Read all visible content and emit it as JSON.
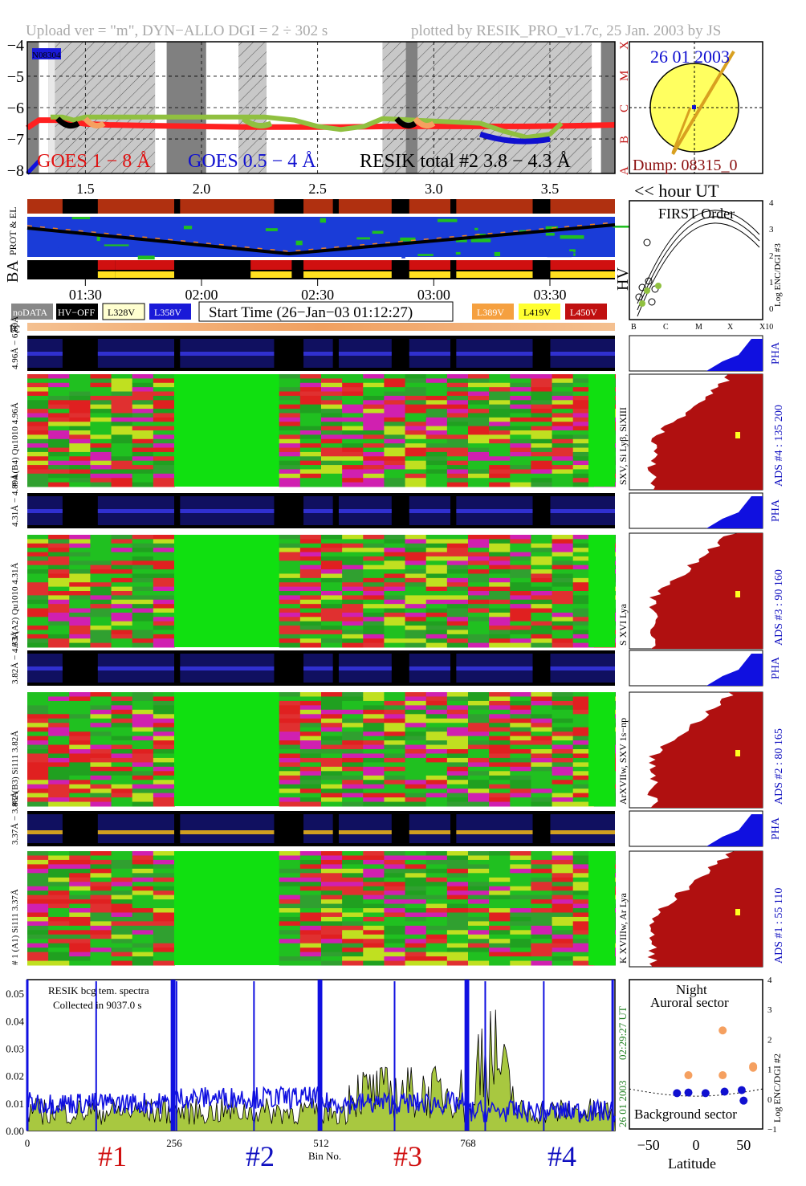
{
  "header": {
    "left": "Upload ver = \"m\", DYN−ALLO DGI =   2 ÷ 302 s",
    "right": "plotted by RESIK_PRO_v1.7c, 25 Jan. 2003 by JS"
  },
  "goes_panel": {
    "id_tag": "N08304",
    "y_ticks": [
      "−4",
      "−5",
      "−6",
      "−7",
      "−8"
    ],
    "class_labels": [
      "X",
      "M",
      "C",
      "B",
      "A"
    ],
    "x_ticks": [
      "1.5",
      "2.0",
      "2.5",
      "3.0",
      "3.5"
    ],
    "legend_goes_long": "GOES 1 − 8 Å",
    "legend_goes_short": "GOES 0.5 − 4 Å",
    "legend_resik": "RESIK total #2  3.8 − 4.3 Å",
    "colors": {
      "goes_long": "#ff2020",
      "goes_short": "#1010e0",
      "resik_total": "#90c040",
      "resik_orange": "#f5a060"
    }
  },
  "sun_panel": {
    "date": "26 01 2003",
    "dump": "Dump: 08315_0",
    "disk_color": "#ffff60"
  },
  "hour_axis_label": "<< hour UT",
  "status": {
    "prot_label": "PROT & EL",
    "ba_label": "BA",
    "hv_label": "HV",
    "time_ticks": [
      "01:30",
      "02:00",
      "02:30",
      "03:00",
      "03:30"
    ]
  },
  "legend_boxes": {
    "nodata": "noDATA",
    "hvoff": "HV−OFF",
    "l328": "L328V",
    "l358": "L358V",
    "start_time": "Start Time (26−Jan−03 01:12:27)",
    "l389": "L389V",
    "l419": "L419V",
    "l450": "L450V"
  },
  "first_order": {
    "title": "FIRST Order",
    "ylabel": "Log ENC/DGI #3",
    "y_ticks": [
      "4",
      "3",
      "2",
      "1",
      "0"
    ],
    "x_ticks": [
      "B",
      "C",
      "M",
      "X",
      "X10"
    ]
  },
  "tc_label": "tc",
  "channels": [
    {
      "pha_label": "4.96Å − 6.09Å",
      "spec_label": "# 4 (B4) Qu1010 4.96Å",
      "side_label": "SXV, Si Lyβ, SiXIII",
      "ads_label": "ADS #4 :   135 200",
      "pha": "PHA"
    },
    {
      "pha_label": "4.31Å − 4.89Å",
      "spec_label": "# 3 (A2) Qu1010 4.31Å",
      "side_label": "S XVI Lya",
      "ads_label": "ADS #3 :    90 160",
      "pha": "PHA"
    },
    {
      "pha_label": "3.82Å − 4.33Å",
      "spec_label": "# 2 (B3) Si111 3.82Å",
      "side_label": "ArXVIIw, SXV 1s−np",
      "ads_label": "ADS #2 :    80 165",
      "pha": "PHA"
    },
    {
      "pha_label": "3.37Å − 3.88Å",
      "spec_label": "# 1 (A1) Si111 3.37Å",
      "side_label": "K XVIIIw, Ar Lya",
      "ads_label": "ADS #1 :    55 110",
      "pha": "PHA"
    }
  ],
  "bottom_spectrum": {
    "note1": "RESIK bcg tem. spectra",
    "note2": "Collected in  9037.0 s",
    "y_ticks": [
      "0.05",
      "0.04",
      "0.03",
      "0.02",
      "0.01",
      "0.00"
    ],
    "x_ticks": [
      "0",
      "256",
      "512",
      "768"
    ],
    "xlabel": "Bin No.",
    "section_labels": [
      "#1",
      "#2",
      "#3",
      "#4"
    ],
    "side_date": "26 01 2003",
    "side_time": "02:29:27 UT"
  },
  "latitude_panel": {
    "title1": "Night",
    "title2": "Auroral sector",
    "bottom_label": "Background sector",
    "ylabel": "Log ENC/DGI #2",
    "y_ticks": [
      "4",
      "3",
      "2",
      "1",
      "0",
      "−1"
    ],
    "x_ticks": [
      "−50",
      "0",
      "50"
    ],
    "xlabel": "Latitude"
  },
  "chart_data": [
    {
      "type": "line",
      "title": "",
      "xlabel": "hour UT",
      "ylabel": "",
      "xlim": [
        1.25,
        3.78
      ],
      "ylim": [
        -8.1,
        -3.9
      ],
      "series": [
        {
          "name": "GOES 1 − 8 Å",
          "x": [
            1.25,
            1.3,
            1.4,
            1.5,
            1.6,
            1.8,
            2.0,
            2.2,
            2.4,
            2.6,
            2.8,
            3.0,
            3.2,
            3.4,
            3.6,
            3.78
          ],
          "values": [
            -6.65,
            -6.4,
            -6.4,
            -6.52,
            -6.55,
            -6.58,
            -6.6,
            -6.62,
            -6.62,
            -6.62,
            -6.6,
            -6.6,
            -6.6,
            -6.6,
            -6.58,
            -6.55
          ]
        },
        {
          "name": "GOES 0.5 − 4 Å",
          "x": [
            1.25,
            1.3
          ],
          "values": [
            -8.1,
            -7.7
          ]
        },
        {
          "name": "RESIK total #2  3.8 − 4.3 Å",
          "x": [
            1.35,
            1.4,
            1.45,
            1.5,
            2.17,
            2.27,
            2.4,
            2.5,
            2.6,
            2.7,
            2.78,
            3.2,
            3.3,
            3.4,
            3.5,
            3.55
          ],
          "values": [
            -6.3,
            -6.3,
            -6.4,
            -6.3,
            -6.3,
            -6.3,
            -6.4,
            -6.6,
            -6.7,
            -6.6,
            -6.35,
            -6.5,
            -6.75,
            -6.95,
            -6.85,
            -6.5
          ]
        }
      ]
    },
    {
      "type": "line",
      "title": "RESIK bcg tem. spectra",
      "xlabel": "Bin No.",
      "ylabel": "",
      "xlim": [
        0,
        1024
      ],
      "ylim": [
        0,
        0.055
      ],
      "series": [
        {
          "name": "black",
          "x": [
            0,
            64,
            128,
            192,
            256,
            320,
            384,
            448,
            512,
            576,
            640,
            704,
            768,
            800,
            832,
            896,
            960,
            1024
          ],
          "values": [
            0.01,
            0.006,
            0.004,
            0.006,
            0.012,
            0.018,
            0.012,
            0.014,
            0.01,
            0.016,
            0.022,
            0.018,
            0.01,
            0.032,
            0.02,
            0.016,
            0.012,
            0.008
          ]
        },
        {
          "name": "blue",
          "x": [
            0,
            64,
            128,
            192,
            256,
            320,
            384,
            448,
            512,
            576,
            640,
            704,
            768,
            832,
            896,
            960,
            1024
          ],
          "values": [
            0.01,
            0.01,
            0.01,
            0.009,
            0.011,
            0.012,
            0.012,
            0.012,
            0.01,
            0.011,
            0.01,
            0.009,
            0.007,
            0.007,
            0.007,
            0.007,
            0.006
          ]
        }
      ]
    },
    {
      "type": "scatter",
      "title": "Night",
      "xlabel": "Latitude",
      "ylabel": "Log ENC/DGI #2",
      "xlim": [
        -70,
        70
      ],
      "ylim": [
        -1,
        4
      ],
      "series": [
        {
          "name": "orange",
          "x": [
            -8,
            28,
            28,
            60,
            60
          ],
          "values": [
            0.8,
            0.8,
            2.3,
            1.05,
            1.1
          ]
        },
        {
          "name": "blue",
          "x": [
            -20,
            -8,
            10,
            30,
            48,
            50
          ],
          "values": [
            0.2,
            0.22,
            0.2,
            0.25,
            0.3,
            -0.05
          ]
        }
      ]
    }
  ]
}
